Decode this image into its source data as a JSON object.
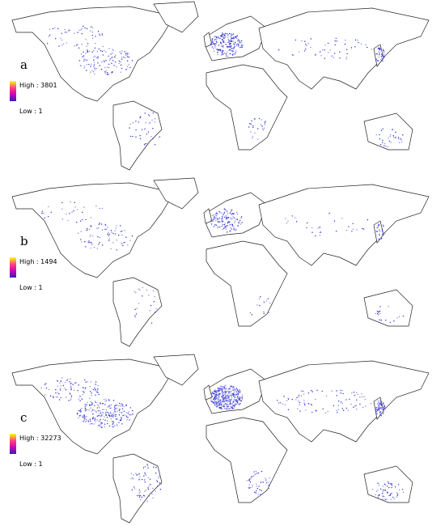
{
  "panels": [
    {
      "label": "a",
      "legend_high": "High : 3801",
      "legend_low": "Low : 1"
    },
    {
      "label": "b",
      "legend_high": "High : 1494",
      "legend_low": "Low : 1"
    },
    {
      "label": "c",
      "legend_high": "High : 32273",
      "legend_low": "Low : 1"
    }
  ]
}
